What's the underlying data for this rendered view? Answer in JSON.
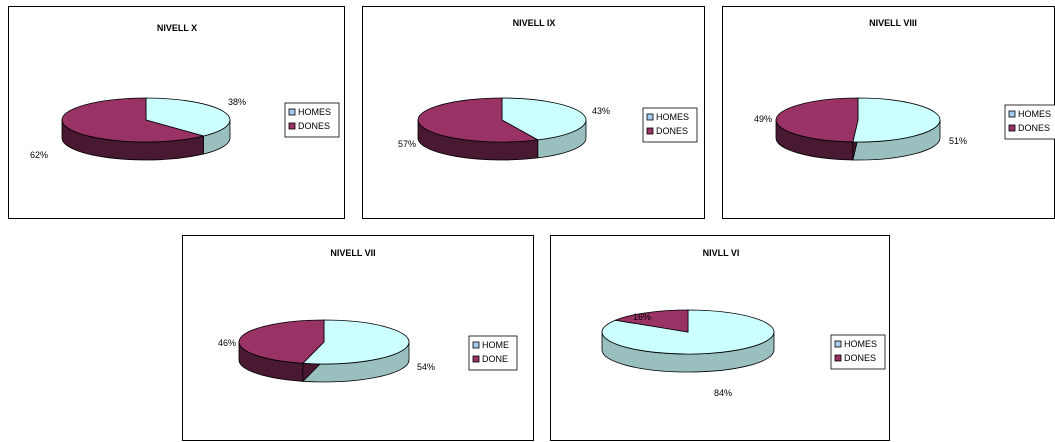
{
  "colors": {
    "homes": "#ccffff",
    "dones": "#993366",
    "outline": "#000000"
  },
  "chart_data": [
    {
      "type": "pie",
      "variant": "3d",
      "title": "NIVELL X",
      "categories": [
        "HOMES",
        "DONES"
      ],
      "values": [
        38,
        62
      ],
      "labels": [
        "38%",
        "62%"
      ],
      "legend": [
        "HOMES",
        "DONES"
      ],
      "legend_position": "right"
    },
    {
      "type": "pie",
      "variant": "3d",
      "title": "NIVELL IX",
      "categories": [
        "HOMES",
        "DONES"
      ],
      "values": [
        43,
        57
      ],
      "labels": [
        "43%",
        "57%"
      ],
      "legend": [
        "HOMES",
        "DONES"
      ],
      "legend_position": "right"
    },
    {
      "type": "pie",
      "variant": "3d",
      "title": "NIVELL VIII",
      "categories": [
        "HOMES",
        "DONES"
      ],
      "values": [
        51,
        49
      ],
      "labels": [
        "51%",
        "49%"
      ],
      "legend": [
        "HOMES",
        "DONES"
      ],
      "legend_position": "right"
    },
    {
      "type": "pie",
      "variant": "3d",
      "title": "NIVELL VII",
      "categories": [
        "HOME",
        "DONE"
      ],
      "values": [
        54,
        46
      ],
      "labels": [
        "54%",
        "46%"
      ],
      "legend": [
        "HOME",
        "DONE"
      ],
      "legend_position": "right"
    },
    {
      "type": "pie",
      "variant": "3d",
      "title": "NIVLL VI",
      "categories": [
        "HOMES",
        "DONES"
      ],
      "values": [
        84,
        16
      ],
      "labels": [
        "84%",
        "16%"
      ],
      "legend": [
        "HOMES",
        "DONES"
      ],
      "legend_position": "right"
    }
  ]
}
